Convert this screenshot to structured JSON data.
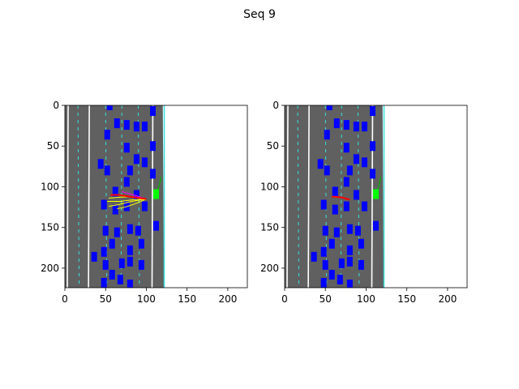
{
  "figure": {
    "title": "Seq 9"
  },
  "colors": {
    "road": "#606060",
    "road_edge": "#36e0e0",
    "lane_dash": "#36e0e0",
    "vehicle": "#0000ff",
    "ego": "#00ff00",
    "ego_future": "#00b400",
    "prediction": "#ffff00",
    "prediction_alt": "#ff00ff",
    "ground_truth": "#ff0000",
    "background": "#ffffff"
  },
  "chart_data": [
    {
      "type": "image",
      "panel": "left",
      "title": "",
      "xlabel": "",
      "ylabel": "",
      "xlim": [
        0,
        224
      ],
      "ylim": [
        224,
        0
      ],
      "xticks": [
        0,
        50,
        100,
        150,
        200
      ],
      "yticks": [
        0,
        50,
        100,
        150,
        200
      ],
      "grid": false,
      "road": {
        "x_left": 0,
        "x_right": 122
      },
      "lane_lines_x": [
        4,
        16,
        30,
        50,
        70,
        90,
        108,
        121
      ],
      "ego": {
        "x": 112,
        "y": 109
      },
      "ego_future": [
        [
          112,
          109
        ],
        [
          116,
          98
        ],
        [
          118,
          88
        ]
      ],
      "ground_truth": [
        [
          100,
          115
        ],
        [
          85,
          113
        ],
        [
          66,
          110
        ],
        [
          56,
          110
        ]
      ],
      "predictions": [
        {
          "color": "prediction",
          "points": [
            [
              100,
              115
            ],
            [
              82,
              118
            ],
            [
              66,
              122
            ],
            [
              54,
              124
            ]
          ]
        },
        {
          "color": "prediction",
          "points": [
            [
              100,
              115
            ],
            [
              84,
              116
            ],
            [
              68,
              118
            ],
            [
              52,
              118
            ]
          ]
        },
        {
          "color": "prediction",
          "points": [
            [
              100,
              115
            ],
            [
              86,
              121
            ],
            [
              74,
              125
            ],
            [
              64,
              127
            ]
          ]
        },
        {
          "color": "prediction",
          "points": [
            [
              100,
              115
            ],
            [
              82,
              112
            ],
            [
              66,
              113
            ],
            [
              54,
              114
            ]
          ]
        },
        {
          "color": "prediction_alt",
          "points": [
            [
              100,
              115
            ],
            [
              84,
              110
            ],
            [
              70,
              106
            ]
          ]
        }
      ],
      "vehicles": [
        [
          55,
          0
        ],
        [
          108,
          7
        ],
        [
          64,
          22
        ],
        [
          76,
          24
        ],
        [
          88,
          26
        ],
        [
          98,
          26
        ],
        [
          52,
          36
        ],
        [
          76,
          52
        ],
        [
          108,
          50
        ],
        [
          88,
          66
        ],
        [
          44,
          72
        ],
        [
          98,
          70
        ],
        [
          52,
          80
        ],
        [
          80,
          80
        ],
        [
          108,
          84
        ],
        [
          76,
          94
        ],
        [
          62,
          106
        ],
        [
          88,
          110
        ],
        [
          48,
          122
        ],
        [
          76,
          124
        ],
        [
          98,
          124
        ],
        [
          62,
          128
        ],
        [
          112,
          148
        ],
        [
          50,
          154
        ],
        [
          64,
          156
        ],
        [
          80,
          152
        ],
        [
          90,
          154
        ],
        [
          58,
          170
        ],
        [
          94,
          170
        ],
        [
          48,
          180
        ],
        [
          80,
          178
        ],
        [
          36,
          186
        ],
        [
          80,
          192
        ],
        [
          50,
          196
        ],
        [
          70,
          194
        ],
        [
          94,
          196
        ],
        [
          58,
          208
        ],
        [
          68,
          214
        ],
        [
          48,
          218
        ],
        [
          80,
          220
        ]
      ]
    },
    {
      "type": "image",
      "panel": "right",
      "title": "",
      "xlabel": "",
      "ylabel": "",
      "xlim": [
        0,
        224
      ],
      "ylim": [
        224,
        0
      ],
      "xticks": [
        0,
        50,
        100,
        150,
        200
      ],
      "yticks": [
        0,
        50,
        100,
        150,
        200
      ],
      "grid": false,
      "road": {
        "x_left": 0,
        "x_right": 122
      },
      "lane_lines_x": [
        4,
        16,
        30,
        50,
        70,
        90,
        108,
        121
      ],
      "ego": {
        "x": 112,
        "y": 109
      },
      "ego_future": [
        [
          112,
          109
        ],
        [
          116,
          98
        ],
        [
          118,
          88
        ]
      ],
      "ground_truth": [
        [
          80,
          116
        ],
        [
          70,
          113
        ],
        [
          58,
          112
        ]
      ],
      "predictions": [],
      "vehicles": [
        [
          55,
          0
        ],
        [
          108,
          7
        ],
        [
          64,
          22
        ],
        [
          76,
          24
        ],
        [
          88,
          26
        ],
        [
          98,
          26
        ],
        [
          52,
          36
        ],
        [
          76,
          52
        ],
        [
          108,
          50
        ],
        [
          88,
          66
        ],
        [
          44,
          72
        ],
        [
          98,
          70
        ],
        [
          52,
          80
        ],
        [
          80,
          80
        ],
        [
          108,
          84
        ],
        [
          76,
          94
        ],
        [
          62,
          106
        ],
        [
          88,
          110
        ],
        [
          48,
          122
        ],
        [
          76,
          124
        ],
        [
          98,
          124
        ],
        [
          62,
          128
        ],
        [
          112,
          148
        ],
        [
          50,
          154
        ],
        [
          64,
          156
        ],
        [
          80,
          152
        ],
        [
          90,
          154
        ],
        [
          58,
          170
        ],
        [
          94,
          170
        ],
        [
          48,
          180
        ],
        [
          80,
          178
        ],
        [
          36,
          186
        ],
        [
          80,
          192
        ],
        [
          50,
          196
        ],
        [
          70,
          194
        ],
        [
          94,
          196
        ],
        [
          58,
          208
        ],
        [
          68,
          214
        ],
        [
          48,
          218
        ],
        [
          80,
          220
        ]
      ]
    }
  ]
}
